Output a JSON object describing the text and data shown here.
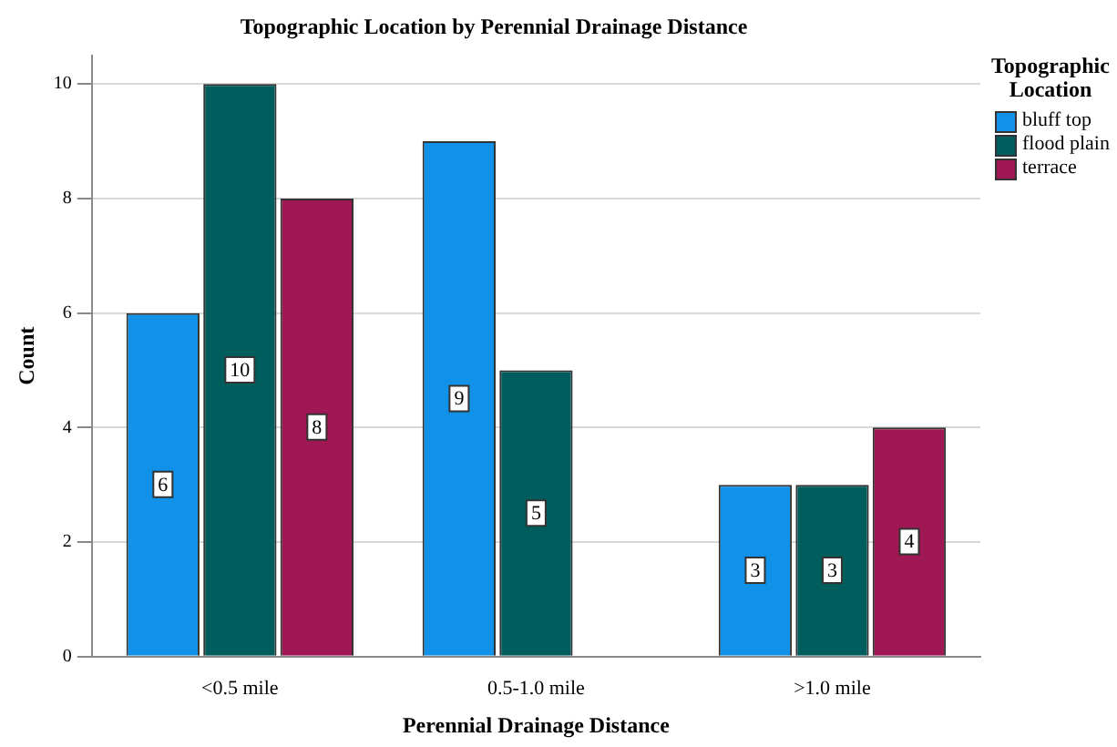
{
  "chart_data": {
    "type": "bar",
    "title": "Topographic Location by Perennial Drainage Distance",
    "xlabel": "Perennial Drainage Distance",
    "ylabel": "Count",
    "legend_title": "Topographic Location",
    "categories": [
      "<0.5 mile",
      "0.5-1.0 mile",
      ">1.0 mile"
    ],
    "series": [
      {
        "name": "bluff top",
        "color": "#1192e8",
        "values": [
          6,
          9,
          3
        ]
      },
      {
        "name": "flood plain",
        "color": "#005d5d",
        "values": [
          10,
          5,
          3
        ]
      },
      {
        "name": "terrace",
        "color": "#9f1853",
        "values": [
          8,
          null,
          4
        ]
      }
    ],
    "ylim": [
      0,
      10.5
    ],
    "yticks": [
      0,
      2,
      4,
      6,
      8,
      10
    ],
    "grid": "y",
    "legend": "top right",
    "data_labels": true
  }
}
